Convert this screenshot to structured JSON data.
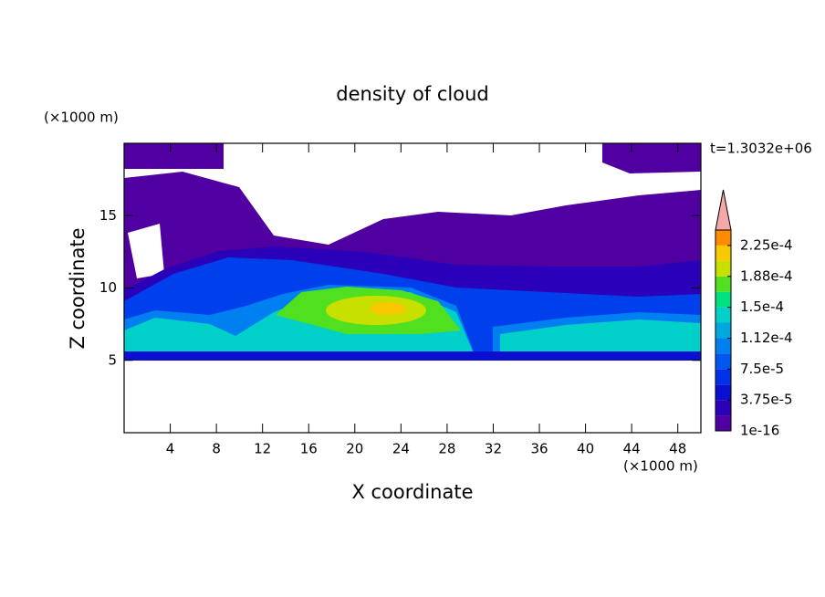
{
  "chart_data": {
    "type": "contour",
    "title": "density of cloud",
    "x_label": "X coordinate",
    "y_label": "Z coordinate",
    "x_unit": "(×1000 m)",
    "y_unit": "(×1000 m)",
    "time_label": "t=1.3032e+06",
    "xlim": [
      0,
      50
    ],
    "ylim": [
      0,
      20
    ],
    "xticks": [
      4,
      8,
      12,
      16,
      20,
      24,
      28,
      32,
      36,
      40,
      44,
      48
    ],
    "yticks": [
      5,
      10,
      15
    ],
    "colorbar": {
      "lim": [
        1e-16,
        0.00024375
      ],
      "ticks": [
        {
          "value": 1e-16,
          "label": "1e-16"
        },
        {
          "value": 3.75e-05,
          "label": "3.75e-5"
        },
        {
          "value": 7.5e-05,
          "label": "7.5e-5"
        },
        {
          "value": 0.0001125,
          "label": "1.12e-4"
        },
        {
          "value": 0.00015,
          "label": "1.5e-4"
        },
        {
          "value": 0.0001875,
          "label": "1.88e-4"
        },
        {
          "value": 0.000225,
          "label": "2.25e-4"
        }
      ],
      "colors": [
        "#5000a0",
        "#2a00b8",
        "#0a10d0",
        "#0030e8",
        "#0058f0",
        "#0080f0",
        "#00a8e0",
        "#00d0c8",
        "#00e080",
        "#50e020",
        "#c8e000",
        "#f8c800",
        "#ff8c00",
        "#ff5000",
        "#f01010"
      ],
      "extend_color": "#f4a8a8"
    }
  }
}
